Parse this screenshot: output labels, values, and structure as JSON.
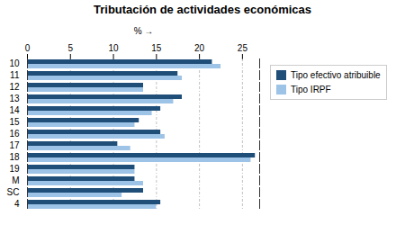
{
  "chart_data": {
    "type": "bar",
    "orientation": "horizontal",
    "title": "Tributación de actividades económicas",
    "xlabel": "%",
    "categories": [
      "10",
      "11",
      "12",
      "13",
      "14",
      "15",
      "16",
      "17",
      "18",
      "19",
      "M",
      "SC",
      "4"
    ],
    "series": [
      {
        "name": "Tipo efectivo atribuible",
        "color": "#1F4E79",
        "values": [
          21.5,
          17.5,
          13.5,
          18.0,
          15.5,
          13.0,
          15.5,
          10.5,
          26.5,
          12.5,
          12.5,
          13.5,
          15.5
        ]
      },
      {
        "name": "Tipo IRPF",
        "color": "#9DC3E6",
        "values": [
          22.5,
          18.0,
          13.5,
          17.0,
          14.5,
          12.5,
          16.0,
          12.0,
          26.0,
          12.5,
          13.5,
          11.0,
          15.0
        ]
      }
    ],
    "xlim": [
      0,
      27
    ],
    "xticks": [
      0,
      5,
      10,
      15,
      20,
      25
    ],
    "grid": true,
    "legend": "right"
  }
}
